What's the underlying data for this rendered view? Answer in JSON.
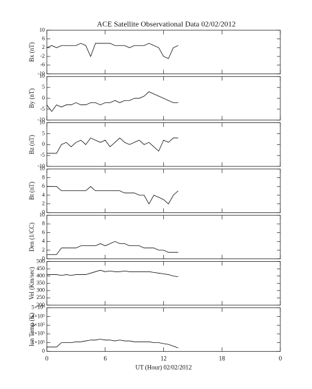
{
  "chart_data": [
    {
      "type": "line",
      "title": "ACE Satellite Observational Data   02/02/2012",
      "ylabel": "Bx (nT)",
      "x": [
        0,
        0.5,
        1,
        1.5,
        2,
        2.5,
        3,
        3.5,
        4,
        4.5,
        5,
        5.5,
        6,
        6.5,
        7,
        7.5,
        8,
        8.5,
        9,
        9.5,
        10,
        10.5,
        11,
        11.5,
        12,
        12.5,
        13,
        13.5
      ],
      "values": [
        2,
        3,
        2,
        3,
        3,
        3,
        3,
        4,
        3,
        -2,
        4,
        4,
        4,
        4,
        3,
        3,
        3,
        2,
        3,
        3,
        3,
        4,
        3,
        2,
        -2,
        -3,
        2,
        3
      ],
      "xlim": [
        0,
        24
      ],
      "ylim": [
        -10,
        10
      ],
      "yticks": [
        -10,
        -6,
        -2,
        2,
        6,
        10
      ],
      "color": "#111111"
    },
    {
      "type": "line",
      "ylabel": "By (nT)",
      "x": [
        0,
        0.5,
        1,
        1.5,
        2,
        2.5,
        3,
        3.5,
        4,
        4.5,
        5,
        5.5,
        6,
        6.5,
        7,
        7.5,
        8,
        8.5,
        9,
        9.5,
        10,
        10.5,
        11,
        11.5,
        12,
        12.5,
        13,
        13.5
      ],
      "values": [
        -3,
        -6,
        -3,
        -4,
        -3,
        -3,
        -2,
        -3,
        -3,
        -2,
        -2,
        -3,
        -2,
        -2,
        -1,
        -2,
        -1,
        -1,
        0,
        0,
        1,
        3,
        2,
        1,
        0,
        -1,
        -2,
        -2
      ],
      "xlim": [
        0,
        24
      ],
      "ylim": [
        -10,
        10
      ],
      "yticks": [
        -10,
        -5,
        0,
        5,
        10
      ],
      "color": "#111111"
    },
    {
      "type": "line",
      "ylabel": "Bz (nT)",
      "x": [
        0,
        0.5,
        1,
        1.5,
        2,
        2.5,
        3,
        3.5,
        4,
        4.5,
        5,
        5.5,
        6,
        6.5,
        7,
        7.5,
        8,
        8.5,
        9,
        9.5,
        10,
        10.5,
        11,
        11.5,
        12,
        12.5,
        13,
        13.5
      ],
      "values": [
        -4,
        -4,
        -4,
        0,
        1,
        -1,
        1,
        2,
        0,
        3,
        2,
        1,
        2,
        -1,
        1,
        3,
        1,
        0,
        1,
        2,
        0,
        1,
        -1,
        -3,
        2,
        1,
        3,
        3
      ],
      "xlim": [
        0,
        24
      ],
      "ylim": [
        -10,
        10
      ],
      "yticks": [
        -10,
        -5,
        0,
        5,
        10
      ],
      "color": "#111111"
    },
    {
      "type": "line",
      "ylabel": "Bt (nT)",
      "x": [
        0,
        0.5,
        1,
        1.5,
        2,
        2.5,
        3,
        3.5,
        4,
        4.5,
        5,
        5.5,
        6,
        6.5,
        7,
        7.5,
        8,
        8.5,
        9,
        9.5,
        10,
        10.5,
        11,
        11.5,
        12,
        12.5,
        13,
        13.5
      ],
      "values": [
        6,
        6,
        6,
        5,
        5,
        5,
        5,
        5,
        5,
        6,
        5,
        5,
        5,
        5,
        5,
        5,
        4.5,
        4.5,
        4.5,
        4,
        4,
        2,
        4,
        3.5,
        3,
        2,
        4,
        5
      ],
      "xlim": [
        0,
        24
      ],
      "ylim": [
        0,
        10
      ],
      "yticks": [
        0,
        2,
        4,
        6,
        8,
        10
      ],
      "color": "#111111"
    },
    {
      "type": "line",
      "ylabel": "Den (1/CC)",
      "x": [
        0,
        0.5,
        1,
        1.5,
        2,
        2.5,
        3,
        3.5,
        4,
        4.5,
        5,
        5.5,
        6,
        6.5,
        7,
        7.5,
        8,
        8.5,
        9,
        9.5,
        10,
        10.5,
        11,
        11.5,
        12,
        12.5,
        13,
        13.5
      ],
      "values": [
        1,
        1,
        1,
        2.5,
        2.5,
        2.5,
        2.5,
        3,
        3,
        3,
        3,
        3.5,
        3,
        3.5,
        4,
        3.5,
        3.5,
        3,
        3,
        3,
        2.5,
        2.5,
        2.5,
        2,
        2,
        1.5,
        1.5,
        1.5
      ],
      "xlim": [
        0,
        24
      ],
      "ylim": [
        0,
        10
      ],
      "yticks": [
        0,
        2,
        4,
        6,
        8,
        10
      ],
      "color": "#111111"
    },
    {
      "type": "line",
      "ylabel": "Vel (Km/sec)",
      "x": [
        0,
        0.5,
        1,
        1.5,
        2,
        2.5,
        3,
        3.5,
        4,
        4.5,
        5,
        5.5,
        6,
        6.5,
        7,
        7.5,
        8,
        8.5,
        9,
        9.5,
        10,
        10.5,
        11,
        11.5,
        12,
        12.5,
        13,
        13.5
      ],
      "values": [
        410,
        410,
        410,
        405,
        410,
        405,
        410,
        410,
        410,
        420,
        430,
        440,
        430,
        435,
        430,
        430,
        435,
        430,
        430,
        430,
        430,
        430,
        425,
        420,
        415,
        410,
        400,
        395
      ],
      "xlim": [
        0,
        24
      ],
      "ylim": [
        200,
        500
      ],
      "yticks": [
        200,
        250,
        300,
        350,
        400,
        450,
        500
      ],
      "color": "#111111"
    },
    {
      "type": "line",
      "ylabel": "Ion Temp (K)",
      "xlabel": "UT (Hour)  02/02/2012",
      "x": [
        0,
        0.5,
        1,
        1.5,
        2,
        2.5,
        3,
        3.5,
        4,
        4.5,
        5,
        5.5,
        6,
        6.5,
        7,
        7.5,
        8,
        8.5,
        9,
        9.5,
        10,
        10.5,
        11,
        11.5,
        12,
        12.5,
        13,
        13.5
      ],
      "values": [
        50000,
        50000,
        50000,
        100000,
        100000,
        100000,
        110000,
        110000,
        120000,
        130000,
        130000,
        140000,
        130000,
        130000,
        120000,
        130000,
        120000,
        120000,
        110000,
        110000,
        110000,
        110000,
        100000,
        100000,
        90000,
        80000,
        60000,
        40000
      ],
      "xlim": [
        0,
        24
      ],
      "xticks": [
        0,
        6,
        12,
        18,
        {
          "value": 24,
          "label": "0"
        }
      ],
      "ylim": [
        0,
        500000
      ],
      "yticks": [
        0,
        {
          "value": 100000,
          "label": "1×10⁵"
        },
        {
          "value": 200000,
          "label": "2×10⁵"
        },
        {
          "value": 300000,
          "label": "3×10⁵"
        },
        {
          "value": 400000,
          "label": "4×10⁵"
        },
        {
          "value": 500000,
          "label": "5×10⁵"
        }
      ],
      "color": "#111111"
    }
  ]
}
